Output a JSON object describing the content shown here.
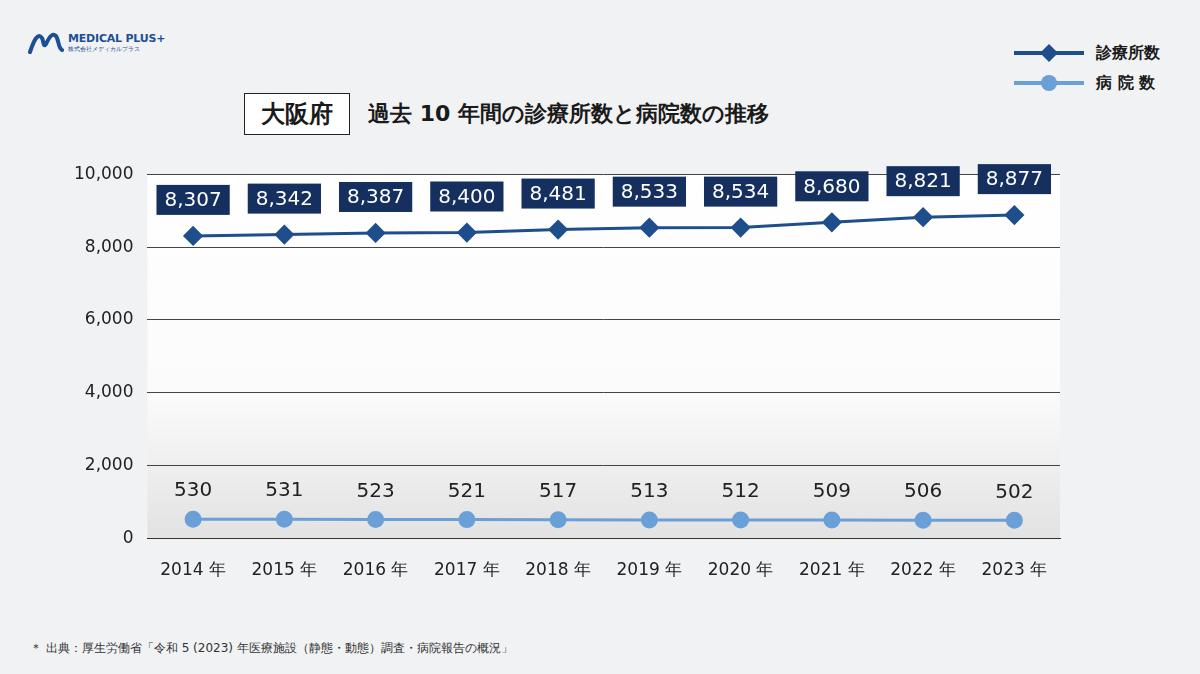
{
  "header": {
    "logo": "MEDICAL PLUS+",
    "logo_sub": "株式会社メディカルプラス",
    "badge": "大阪府"
  },
  "chart_data": {
    "type": "line",
    "title": "過去 10 年間の診療所数と病院数の推移",
    "categories": [
      "2014 年",
      "2015 年",
      "2016 年",
      "2017 年",
      "2018 年",
      "2019 年",
      "2020 年",
      "2021 年",
      "2022 年",
      "2023 年"
    ],
    "series": [
      {
        "name": "診療所数",
        "color": "#1f4e8c",
        "marker": "diamond",
        "values": [
          8307,
          8342,
          8387,
          8400,
          8481,
          8533,
          8534,
          8680,
          8821,
          8877
        ],
        "value_labels": [
          "8,307",
          "8,342",
          "8,387",
          "8,400",
          "8,481",
          "8,533",
          "8,534",
          "8,680",
          "8,821",
          "8,877"
        ]
      },
      {
        "name": "病 院 数",
        "color": "#6a9fd8",
        "marker": "circle",
        "values": [
          530,
          531,
          523,
          521,
          517,
          513,
          512,
          509,
          506,
          502
        ]
      }
    ],
    "ylim": [
      0,
      10000
    ],
    "yticks": [
      0,
      {
        "value": 2000,
        "label": "2,000"
      },
      {
        "value": 4000,
        "label": "4,000"
      },
      {
        "value": 6000,
        "label": "6,000"
      },
      {
        "value": 8000,
        "label": "8,000"
      },
      {
        "value": 10000,
        "label": "10,000"
      }
    ],
    "grid": true,
    "legend": "top-right",
    "data_labels": true
  },
  "footer": {
    "source": "＊ 出典：厚生労働省「令和 5 (2023) 年医療施設（静態・動態）調査・病院報告の概況」"
  }
}
